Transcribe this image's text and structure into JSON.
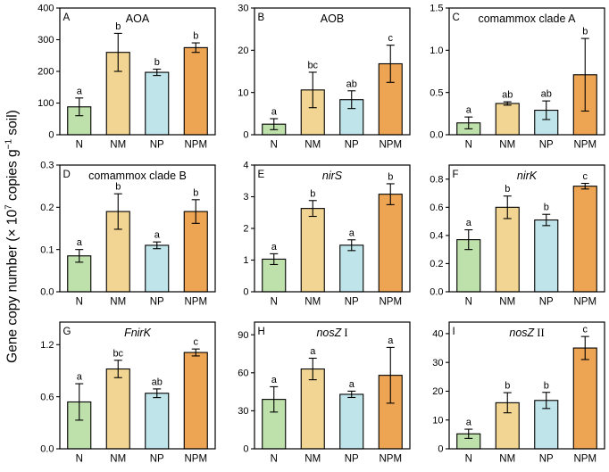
{
  "figure": {
    "ylabel_parts": [
      {
        "text": "Gene copy number (× 10"
      },
      {
        "text": "7",
        "sup": true
      },
      {
        "text": " copies g"
      },
      {
        "text": "−1",
        "sup": true
      },
      {
        "text": " soil)"
      }
    ],
    "categories": [
      "N",
      "NM",
      "NP",
      "NPM"
    ],
    "bar_colors": {
      "N": "#BEE0AA",
      "NM": "#F2D593",
      "NP": "#BFE4E9",
      "NPM": "#EDA453"
    },
    "bar_stroke": "#000000",
    "frame_color": "#000000",
    "text_color": "#000000"
  },
  "chart_data": [
    {
      "type": "bar",
      "panel": "A",
      "title_parts": [
        {
          "text": "AOA"
        }
      ],
      "categories": [
        "N",
        "NM",
        "NP",
        "NPM"
      ],
      "values": [
        88,
        260,
        197,
        275
      ],
      "errors": [
        28,
        60,
        10,
        15
      ],
      "sig_letters": [
        "a",
        "b",
        "b",
        "b"
      ],
      "ylim": [
        0,
        400
      ],
      "yticks": [
        "0",
        "100",
        "200",
        "300",
        "400"
      ]
    },
    {
      "type": "bar",
      "panel": "B",
      "title_parts": [
        {
          "text": "AOB"
        }
      ],
      "categories": [
        "N",
        "NM",
        "NP",
        "NPM"
      ],
      "values": [
        2.5,
        10.6,
        8.3,
        16.8
      ],
      "errors": [
        1.3,
        4.2,
        2.1,
        4.4
      ],
      "sig_letters": [
        "a",
        "bc",
        "ab",
        "c"
      ],
      "ylim": [
        0,
        30
      ],
      "yticks": [
        "0",
        "10",
        "20",
        "30"
      ]
    },
    {
      "type": "bar",
      "panel": "C",
      "title_parts": [
        {
          "text": "comammox clade A"
        }
      ],
      "categories": [
        "N",
        "NM",
        "NP",
        "NPM"
      ],
      "values": [
        0.14,
        0.37,
        0.29,
        0.71
      ],
      "errors": [
        0.07,
        0.02,
        0.11,
        0.43
      ],
      "sig_letters": [
        "a",
        "ab",
        "ab",
        "b"
      ],
      "ylim": [
        0,
        1.5
      ],
      "yticks": [
        "0.0",
        "0.5",
        "1.0",
        "1.5"
      ]
    },
    {
      "type": "bar",
      "panel": "D",
      "title_parts": [
        {
          "text": "comammox clade B"
        }
      ],
      "categories": [
        "N",
        "NM",
        "NP",
        "NPM"
      ],
      "values": [
        0.085,
        0.19,
        0.11,
        0.19
      ],
      "errors": [
        0.015,
        0.042,
        0.008,
        0.028
      ],
      "sig_letters": [
        "a",
        "b",
        "a",
        "b"
      ],
      "ylim": [
        0,
        0.3
      ],
      "yticks": [
        "0.0",
        "0.1",
        "0.2",
        "0.3"
      ]
    },
    {
      "type": "bar",
      "panel": "E",
      "title_parts": [
        {
          "text": "nirS",
          "italic": true
        }
      ],
      "categories": [
        "N",
        "NM",
        "NP",
        "NPM"
      ],
      "values": [
        1.03,
        2.63,
        1.47,
        3.08
      ],
      "errors": [
        0.17,
        0.25,
        0.17,
        0.33
      ],
      "sig_letters": [
        "a",
        "b",
        "a",
        "b"
      ],
      "ylim": [
        0,
        4
      ],
      "yticks": [
        "0",
        "1",
        "2",
        "3",
        "4"
      ]
    },
    {
      "type": "bar",
      "panel": "F",
      "title_parts": [
        {
          "text": "nirK",
          "italic": true
        }
      ],
      "categories": [
        "N",
        "NM",
        "NP",
        "NPM"
      ],
      "values": [
        0.37,
        0.6,
        0.51,
        0.75
      ],
      "errors": [
        0.07,
        0.08,
        0.04,
        0.02
      ],
      "sig_letters": [
        "a",
        "b",
        "b",
        "c"
      ],
      "ylim": [
        0,
        0.9
      ],
      "yticks": [
        "0.0",
        "0.2",
        "0.4",
        "0.6",
        "0.8"
      ]
    },
    {
      "type": "bar",
      "panel": "G",
      "title_parts": [
        {
          "text": "FnirK",
          "italic": true
        }
      ],
      "categories": [
        "N",
        "NM",
        "NP",
        "NPM"
      ],
      "values": [
        0.54,
        0.92,
        0.64,
        1.11
      ],
      "errors": [
        0.21,
        0.1,
        0.05,
        0.04
      ],
      "sig_letters": [
        "a",
        "bc",
        "ab",
        "c"
      ],
      "ylim": [
        0,
        1.46
      ],
      "yticks": [
        "0.0",
        "0.6",
        "1.2"
      ]
    },
    {
      "type": "bar",
      "panel": "H",
      "title_parts": [
        {
          "text": "nosZ",
          "italic": true
        },
        {
          "text": " I",
          "serif": true
        }
      ],
      "categories": [
        "N",
        "NM",
        "NP",
        "NPM"
      ],
      "values": [
        39,
        63,
        43,
        58
      ],
      "errors": [
        10,
        8.5,
        2.5,
        22
      ],
      "sig_letters": [
        "a",
        "a",
        "a",
        "a"
      ],
      "ylim": [
        0,
        100
      ],
      "yticks": [
        "0",
        "30",
        "60",
        "90"
      ]
    },
    {
      "type": "bar",
      "panel": "I",
      "title_parts": [
        {
          "text": "nosZ",
          "italic": true
        },
        {
          "text": " II",
          "serif": true
        }
      ],
      "categories": [
        "N",
        "NM",
        "NP",
        "NPM"
      ],
      "values": [
        5.2,
        16,
        16.8,
        35
      ],
      "errors": [
        1.6,
        3.5,
        2.8,
        4
      ],
      "sig_letters": [
        "a",
        "b",
        "b",
        "c"
      ],
      "ylim": [
        0,
        44
      ],
      "yticks": [
        "0",
        "10",
        "20",
        "30",
        "40"
      ]
    }
  ]
}
